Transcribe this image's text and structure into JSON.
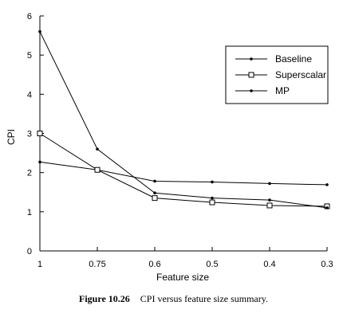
{
  "chart_data": {
    "type": "line",
    "categories": [
      "1",
      "0.75",
      "0.6",
      "0.5",
      "0.4",
      "0.3"
    ],
    "series": [
      {
        "name": "Baseline",
        "marker": "dot",
        "values": [
          2.27,
          2.07,
          1.78,
          1.76,
          1.72,
          1.69
        ]
      },
      {
        "name": "Superscalar",
        "marker": "square",
        "values": [
          3.0,
          2.07,
          1.35,
          1.24,
          1.16,
          1.14
        ]
      },
      {
        "name": "MP",
        "marker": "dot",
        "values": [
          5.6,
          2.6,
          1.48,
          1.35,
          1.3,
          1.1
        ]
      }
    ],
    "xlabel": "Feature size",
    "ylabel": "CPI",
    "ylim": [
      0,
      6
    ],
    "yticks": [
      "0",
      "1",
      "2",
      "3",
      "4",
      "5",
      "6"
    ],
    "grid": false,
    "legend_position": "top-right"
  },
  "caption": {
    "figure_number": "Figure 10.26",
    "text": "CPI versus feature size summary."
  }
}
